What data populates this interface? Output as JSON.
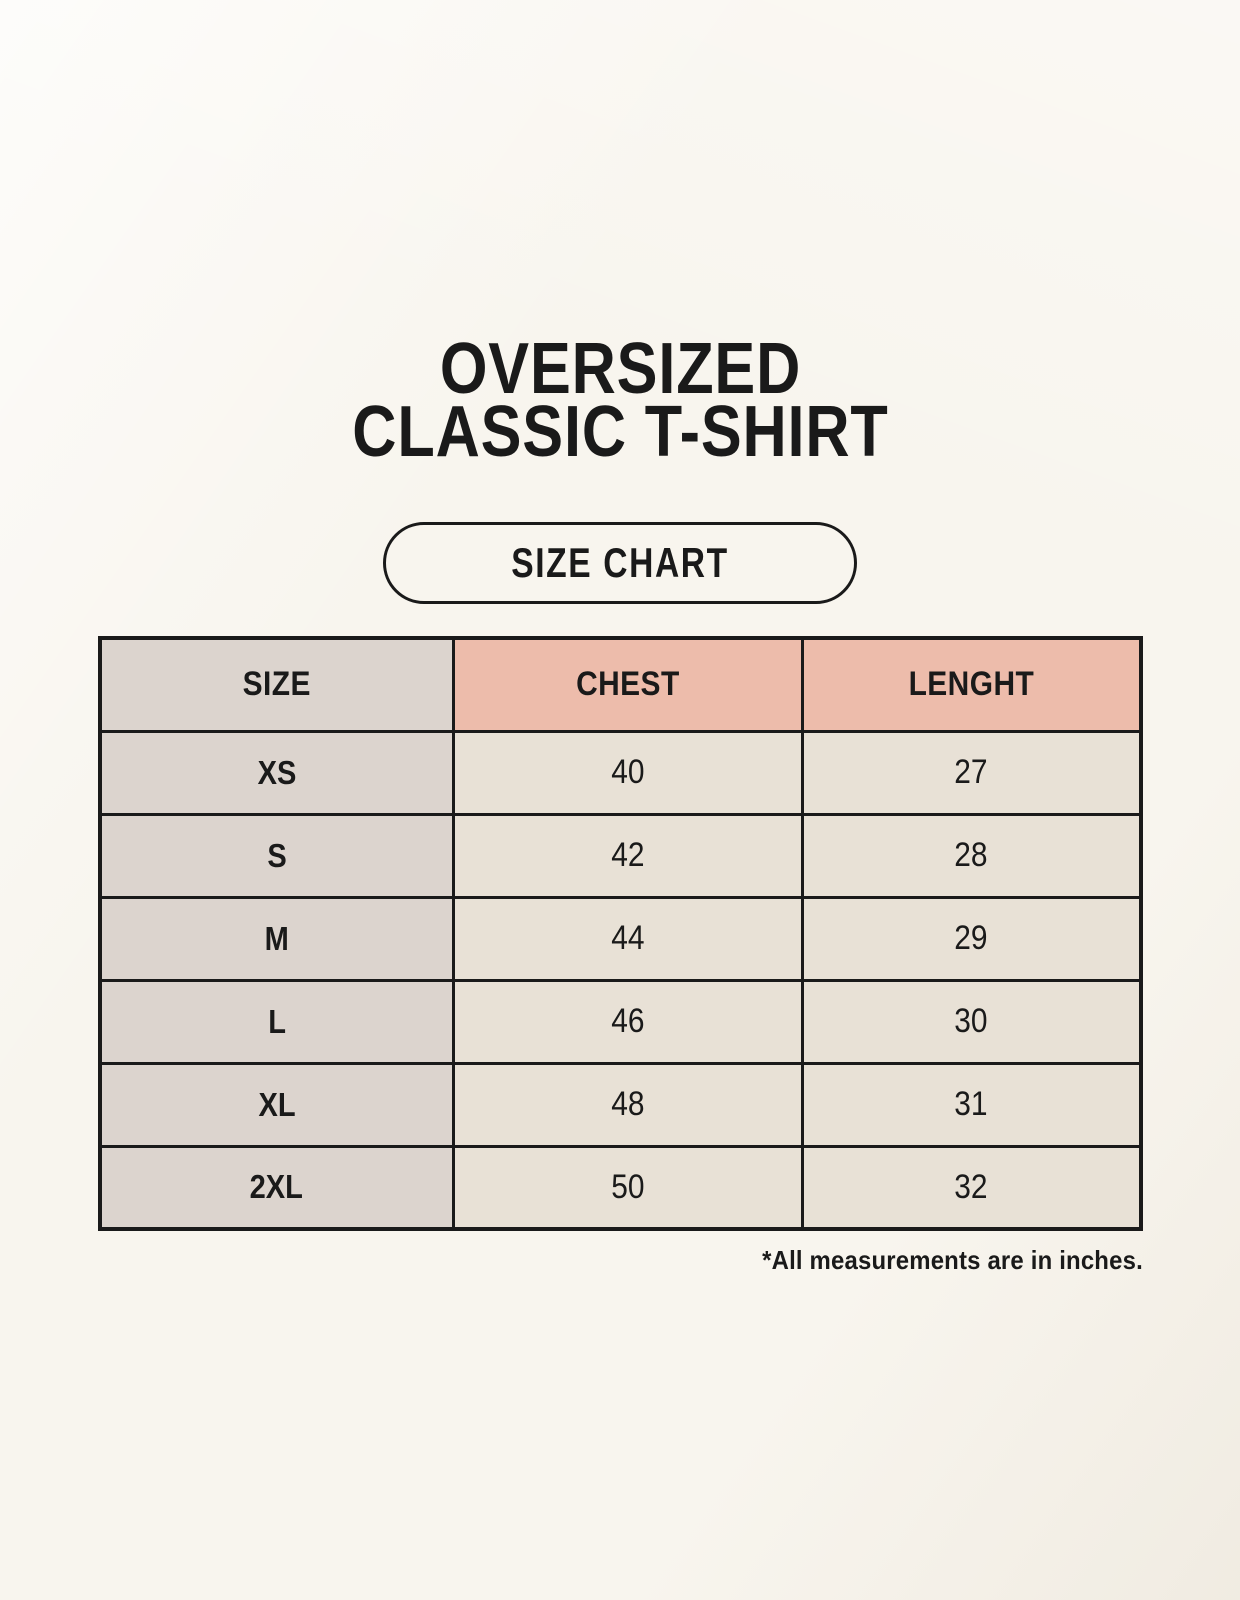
{
  "header": {
    "title_line1": "OVERSIZED",
    "title_line2": "CLASSIC T-SHIRT",
    "badge_label": "SIZE CHART"
  },
  "chart_data": {
    "type": "table",
    "title": "SIZE CHART",
    "columns": [
      "SIZE",
      "CHEST",
      "LENGHT"
    ],
    "rows": [
      [
        "XS",
        "40",
        "27"
      ],
      [
        "S",
        "42",
        "28"
      ],
      [
        "M",
        "44",
        "29"
      ],
      [
        "L",
        "46",
        "30"
      ],
      [
        "XL",
        "48",
        "31"
      ],
      [
        "2XL",
        "50",
        "32"
      ]
    ],
    "units": "inches"
  },
  "footnote": "*All measurements are in inches.",
  "colors": {
    "background": "#f8f5ee",
    "size_column_bg": "#dcd4ce",
    "header_accent_bg": "#edbcab",
    "data_cell_bg": "#e8e1d6",
    "border": "#1a1a1a",
    "text": "#1a1a1a"
  }
}
